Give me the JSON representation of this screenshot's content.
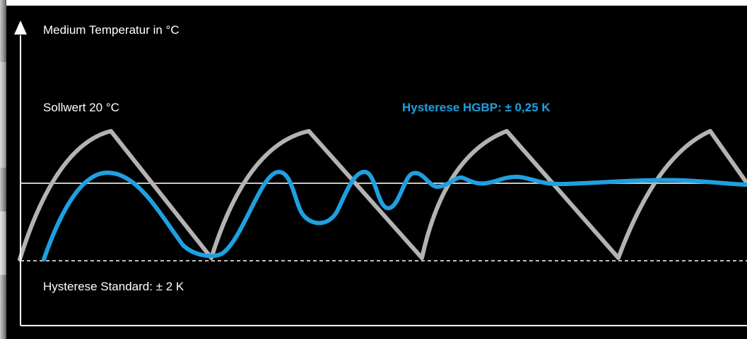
{
  "diagram": {
    "y_axis_label": "Medium Temperatur in °C",
    "setpoint_label": "Sollwert 20 °C",
    "hgbp_label": "Hysterese HGBP: ± 0,25 K",
    "standard_label": "Hysterese Standard: ± 2 K",
    "colors": {
      "background": "#000000",
      "standard_curve": "#b3b3b3",
      "hgbp_curve": "#1ea0e1",
      "axis": "#ffffff",
      "setpoint_line": "#c8c8c8"
    }
  }
}
